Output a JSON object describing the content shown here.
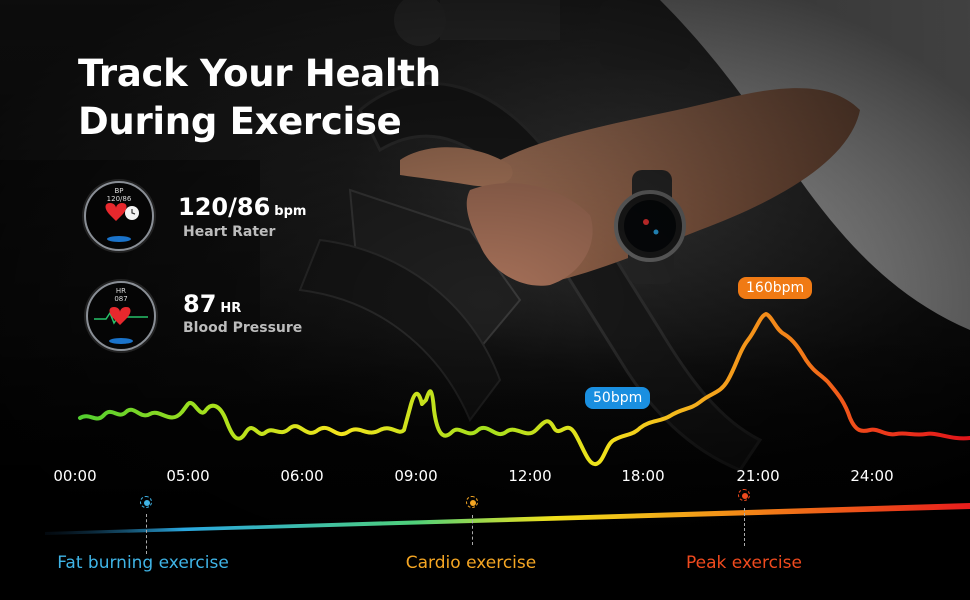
{
  "headline": {
    "line1": "Track Your Health",
    "line2": "During Exercise"
  },
  "stats": [
    {
      "screen_label": "BP",
      "screen_value": "120/86",
      "value": "120/86",
      "unit": "bpm",
      "label": "Heart Rater"
    },
    {
      "screen_label": "HR",
      "screen_value": "087",
      "value": "87",
      "unit": "HR",
      "label": "Blood Pressure"
    }
  ],
  "callouts": {
    "low": {
      "text": "50bpm",
      "color": "#1a8fe0"
    },
    "high": {
      "text": "160bpm",
      "color": "#f07a14"
    }
  },
  "time_axis": [
    "00:00",
    "05:00",
    "06:00",
    "09:00",
    "12:00",
    "18:00",
    "21:00",
    "24:00"
  ],
  "zones": [
    {
      "name": "Fat burning exercise",
      "color": "#3fb4e6"
    },
    {
      "name": "Cardio exercise",
      "color": "#f5a623"
    },
    {
      "name": "Peak exercise",
      "color": "#f04a1e"
    }
  ],
  "icons": [
    "heart-icon",
    "watch-icon",
    "flame-icon"
  ]
}
